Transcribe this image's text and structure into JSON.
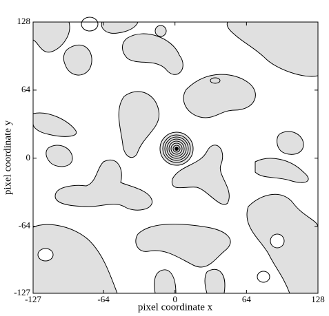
{
  "chart_data": {
    "type": "contour",
    "xlabel": "pixel coordinate x",
    "ylabel": "pixel coordinate y",
    "xlim": [
      -127,
      128
    ],
    "ylim": [
      -127,
      128
    ],
    "xticks": [
      -127,
      -64,
      0,
      64,
      128
    ],
    "yticks": [
      -127,
      -64,
      0,
      64,
      128
    ],
    "color": "#e0e0e0"
  }
}
